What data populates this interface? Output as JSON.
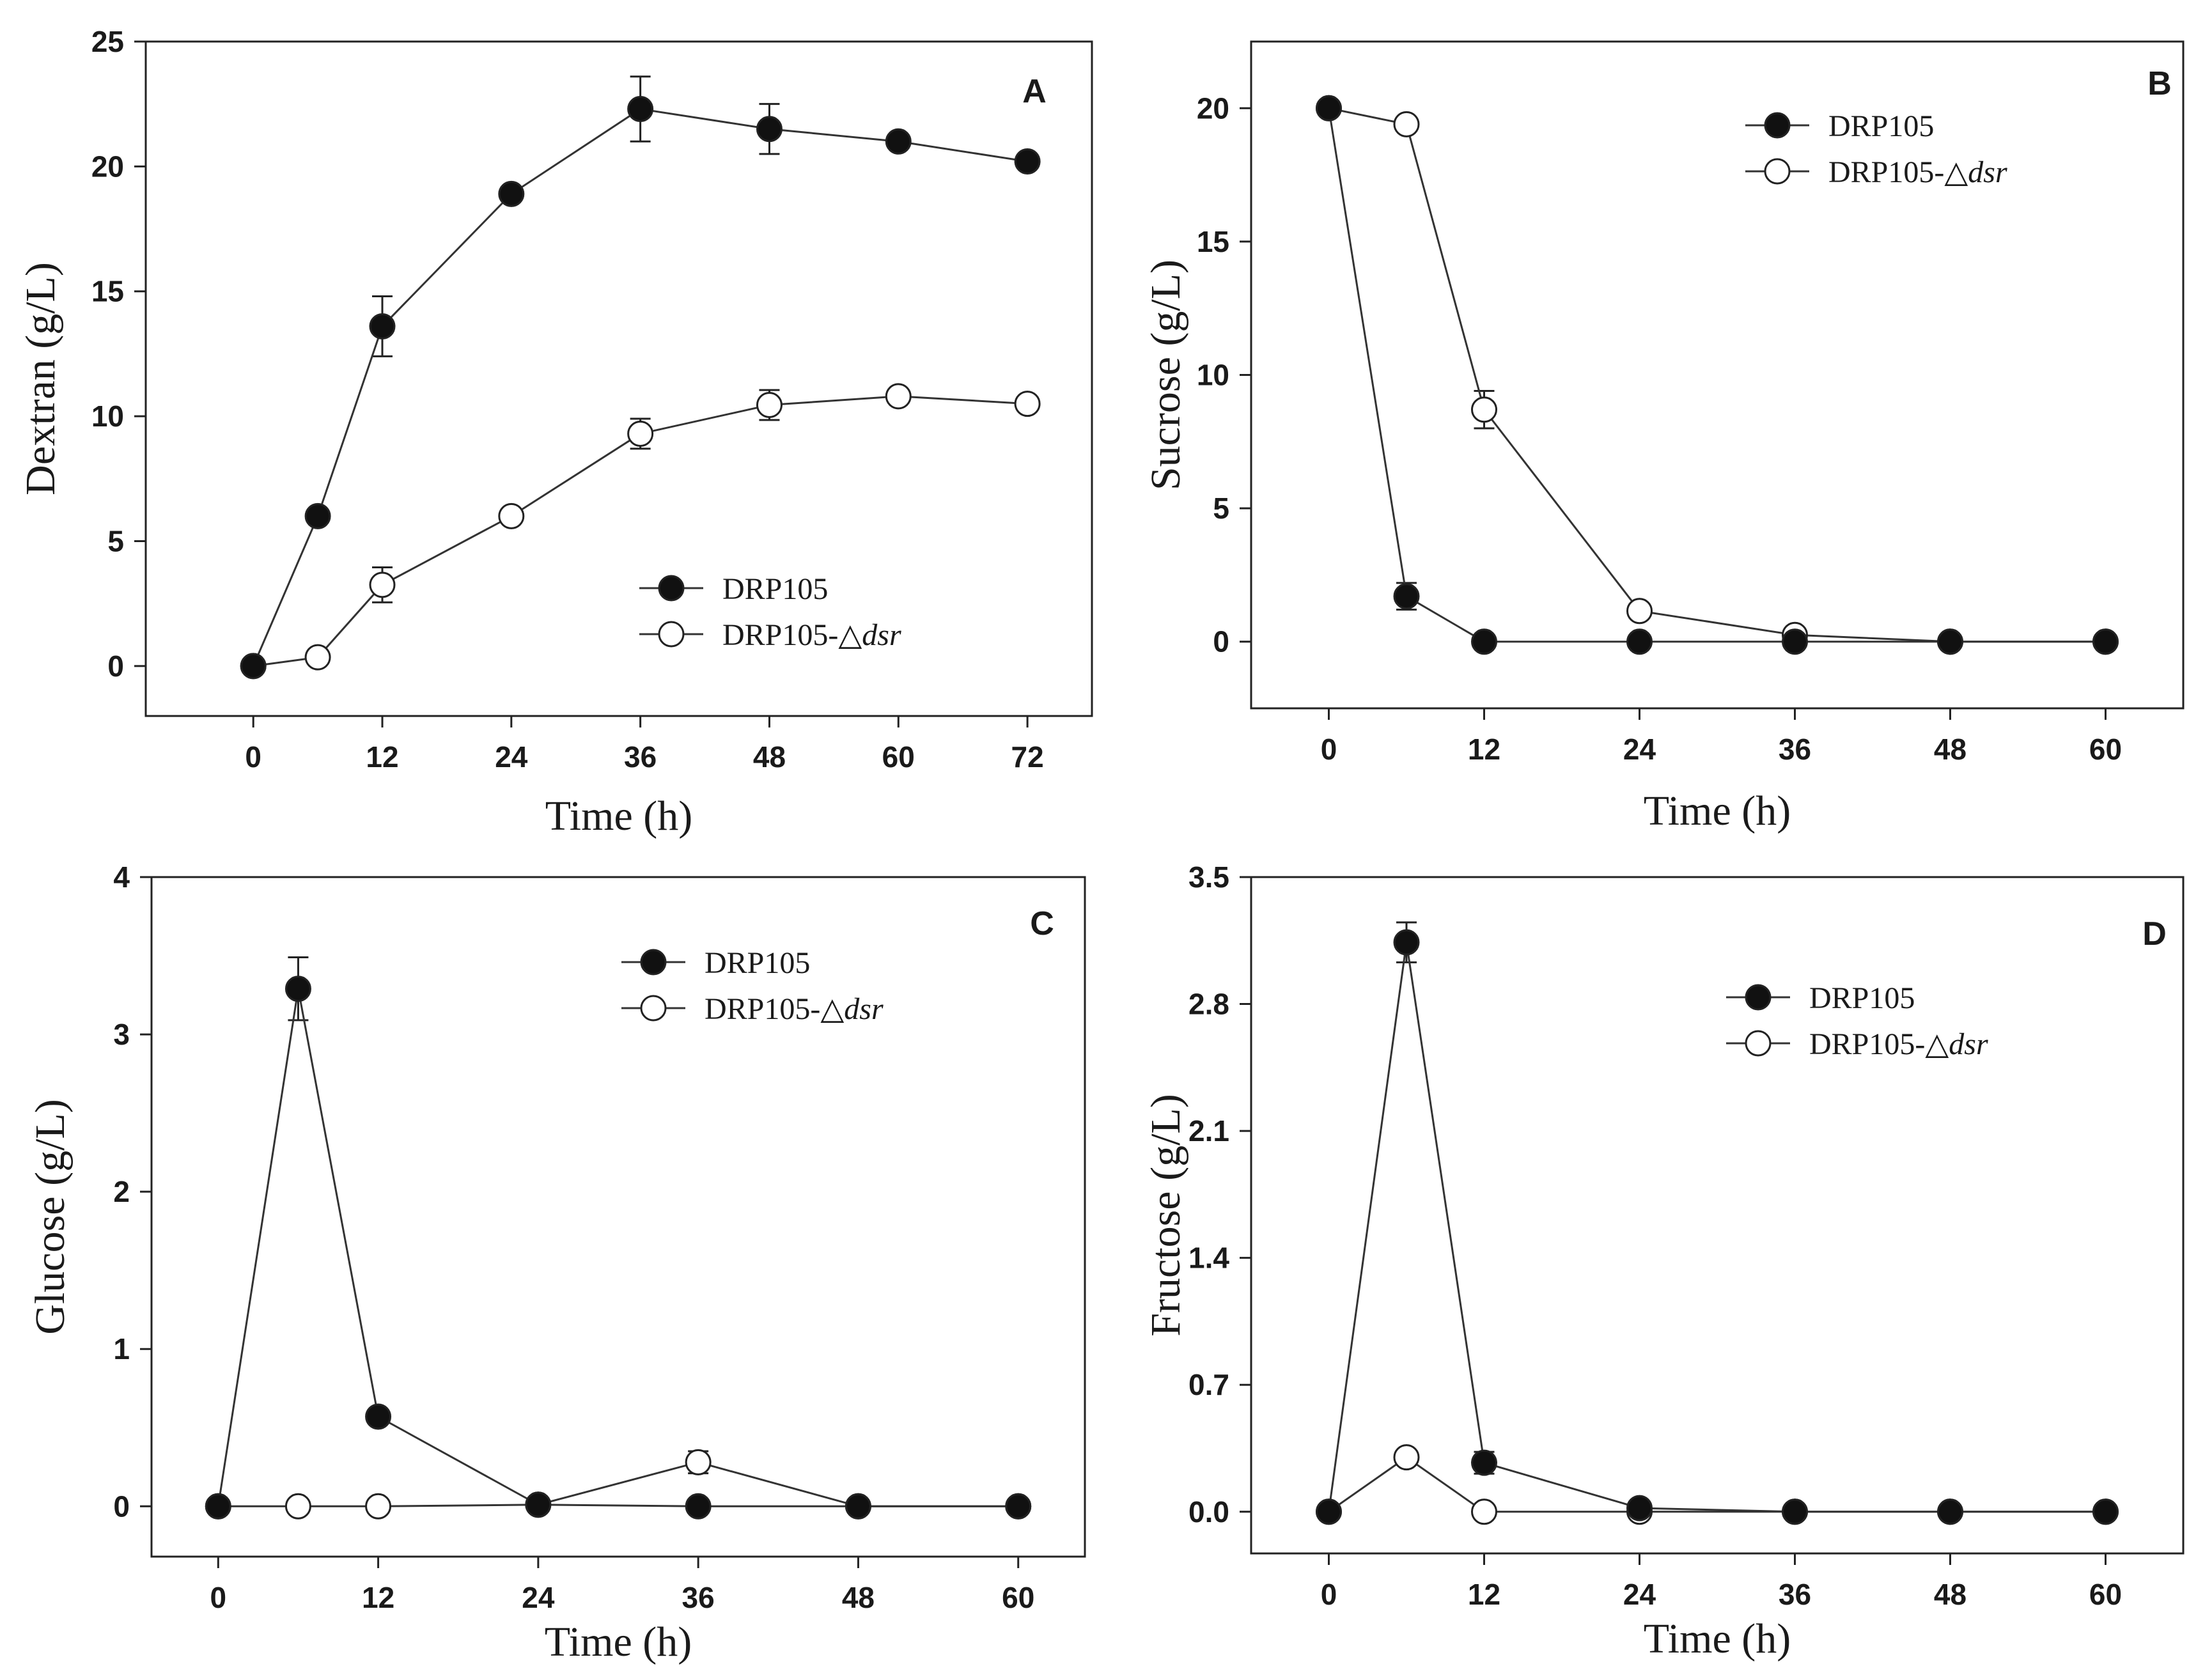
{
  "chart_data": [
    {
      "type": "line",
      "panel_label": "A",
      "xlabel": "Time (h)",
      "ylabel": "Dextran (g/L)",
      "xlim": [
        -10,
        78
      ],
      "ylim": [
        -2,
        25
      ],
      "xticks": [
        0,
        12,
        24,
        36,
        48,
        60,
        72
      ],
      "yticks": [
        0,
        5,
        10,
        15,
        20,
        25
      ],
      "ytick_decimals": 0,
      "legend_position": "lower-right",
      "series": [
        {
          "name": "DRP105",
          "marker": "filled-circle",
          "x": [
            0,
            6,
            12,
            24,
            36,
            48,
            60,
            72
          ],
          "y": [
            0,
            6.0,
            13.6,
            18.9,
            22.3,
            21.5,
            21.0,
            20.2
          ],
          "err": [
            0,
            0,
            1.2,
            0,
            1.3,
            1.0,
            0,
            0
          ]
        },
        {
          "name": "DRP105-△dsr",
          "marker": "open-circle",
          "x": [
            0,
            6,
            12,
            24,
            36,
            48,
            60,
            72
          ],
          "y": [
            0,
            0.35,
            3.25,
            6.0,
            9.3,
            10.45,
            10.8,
            10.5
          ],
          "err": [
            0,
            0,
            0.7,
            0,
            0.6,
            0.6,
            0,
            0
          ]
        }
      ]
    },
    {
      "type": "line",
      "panel_label": "B",
      "xlabel": "Time (h)",
      "ylabel": "Sucrose (g/L)",
      "xlim": [
        -6,
        66
      ],
      "ylim": [
        -2.5,
        22.5
      ],
      "xticks": [
        0,
        12,
        24,
        36,
        48,
        60
      ],
      "yticks": [
        0,
        5,
        10,
        15,
        20
      ],
      "ytick_decimals": 0,
      "legend_position": "top-right",
      "series": [
        {
          "name": "DRP105",
          "marker": "filled-circle",
          "x": [
            0,
            6,
            12,
            24,
            36,
            48,
            60
          ],
          "y": [
            20.0,
            1.7,
            0,
            0,
            0,
            0,
            0
          ],
          "err": [
            0,
            0.5,
            0,
            0,
            0,
            0,
            0
          ]
        },
        {
          "name": "DRP105-△dsr",
          "marker": "open-circle",
          "x": [
            0,
            6,
            12,
            24,
            36,
            48,
            60
          ],
          "y": [
            20.0,
            19.4,
            8.7,
            1.15,
            0.25,
            0,
            0
          ],
          "err": [
            0,
            0,
            0.7,
            0,
            0,
            0,
            0
          ]
        }
      ]
    },
    {
      "type": "line",
      "panel_label": "C",
      "xlabel": "Time (h)",
      "ylabel": "Glucose (g/L)",
      "xlim": [
        -5,
        65
      ],
      "ylim": [
        -0.32,
        4
      ],
      "xticks": [
        0,
        12,
        24,
        36,
        48,
        60
      ],
      "yticks": [
        0,
        1,
        2,
        3,
        4
      ],
      "ytick_decimals": 0,
      "legend_position": "top-right",
      "series": [
        {
          "name": "DRP105",
          "marker": "filled-circle",
          "x": [
            0,
            6,
            12,
            24,
            36,
            48,
            60
          ],
          "y": [
            0,
            3.29,
            0.57,
            0.01,
            0,
            0,
            0
          ],
          "err": [
            0,
            0.2,
            0,
            0,
            0,
            0,
            0
          ]
        },
        {
          "name": "DRP105-△dsr",
          "marker": "open-circle",
          "x": [
            0,
            6,
            12,
            24,
            36,
            48,
            60
          ],
          "y": [
            0,
            0,
            0,
            0.01,
            0.28,
            0,
            0
          ],
          "err": [
            0,
            0,
            0,
            0,
            0.07,
            0,
            0
          ]
        }
      ]
    },
    {
      "type": "line",
      "panel_label": "D",
      "xlabel": "Time (h)",
      "ylabel": "Fructose (g/L)",
      "xlim": [
        -6,
        66
      ],
      "ylim": [
        -0.23,
        3.5
      ],
      "xticks": [
        0,
        12,
        24,
        36,
        48,
        60
      ],
      "yticks": [
        0.0,
        0.7,
        1.4,
        2.1,
        2.8,
        3.5
      ],
      "ytick_decimals": 1,
      "legend_position": "top-right",
      "series": [
        {
          "name": "DRP105",
          "marker": "filled-circle",
          "x": [
            0,
            6,
            12,
            24,
            36,
            48,
            60
          ],
          "y": [
            0,
            3.14,
            0.27,
            0.02,
            0,
            0,
            0
          ],
          "err": [
            0,
            0.11,
            0.06,
            0,
            0,
            0,
            0
          ]
        },
        {
          "name": "DRP105-△dsr",
          "marker": "open-circle",
          "x": [
            0,
            6,
            12,
            24,
            36,
            48,
            60
          ],
          "y": [
            0,
            0.3,
            0,
            0,
            0,
            0,
            0
          ],
          "err": [
            0,
            0,
            0,
            0,
            0,
            0,
            0
          ]
        }
      ]
    }
  ]
}
